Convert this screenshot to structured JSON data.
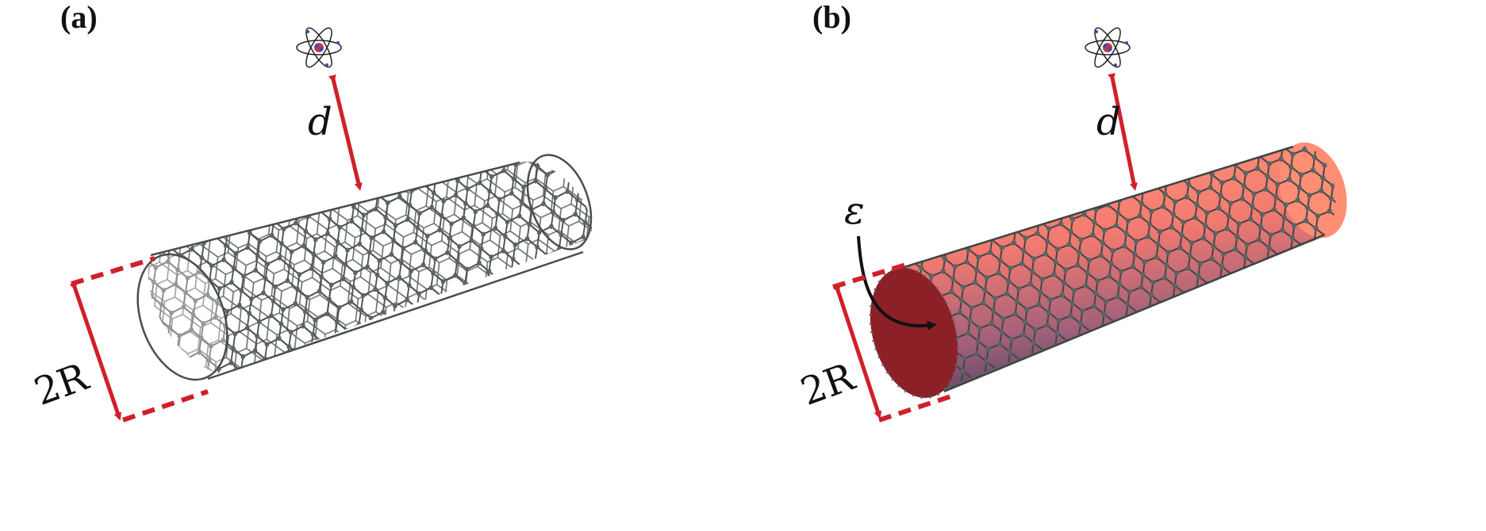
{
  "panels": [
    {
      "id": "a",
      "label": "(a)",
      "distance_label": "d",
      "diameter_label": "2R",
      "tube_style": "bare carbon nanotube (hexagonal lattice only)"
    },
    {
      "id": "b",
      "label": "(b)",
      "distance_label": "d",
      "diameter_label": "2R",
      "permittivity_label": "ε",
      "tube_style": "carbon nanotube wrapped on solid dielectric cylinder"
    }
  ],
  "colors": {
    "arrow_red": "#d0202a",
    "lattice_gray": "#4a4d4d",
    "atom_fill": "#5b6463",
    "cylinder_light": "#ff8a6a",
    "cylinder_dark": "#6f4a6e",
    "end_cap": "#8b2126",
    "annotation_black": "#111111"
  },
  "icons": {
    "atom": "atom-icon"
  }
}
